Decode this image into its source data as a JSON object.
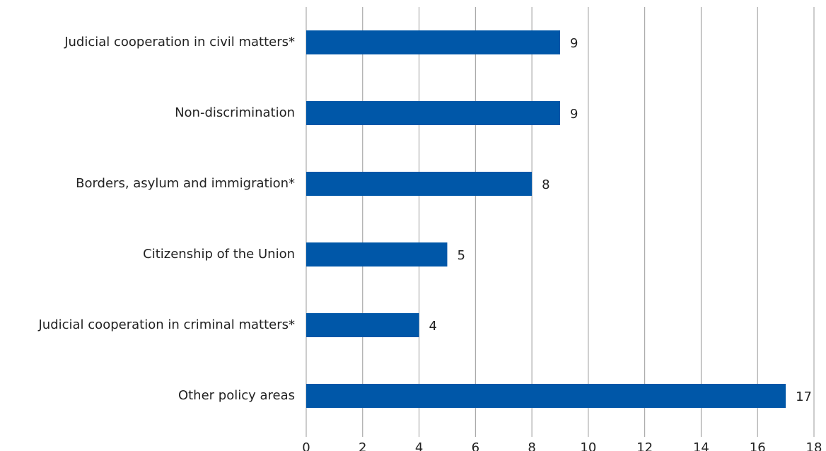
{
  "chart_data": {
    "type": "bar",
    "orientation": "horizontal",
    "categories": [
      "Judicial cooperation in civil matters*",
      "Non-discrimination",
      "Borders, asylum and immigration*",
      "Citizenship of the Union",
      "Judicial cooperation in criminal matters*",
      "Other policy areas"
    ],
    "values": [
      9,
      9,
      8,
      5,
      4,
      17
    ],
    "color": "#0057a8",
    "xlim": [
      0,
      18
    ],
    "xticks": [
      0,
      2,
      4,
      6,
      8,
      10,
      12,
      14,
      16,
      18
    ],
    "grid": true
  }
}
